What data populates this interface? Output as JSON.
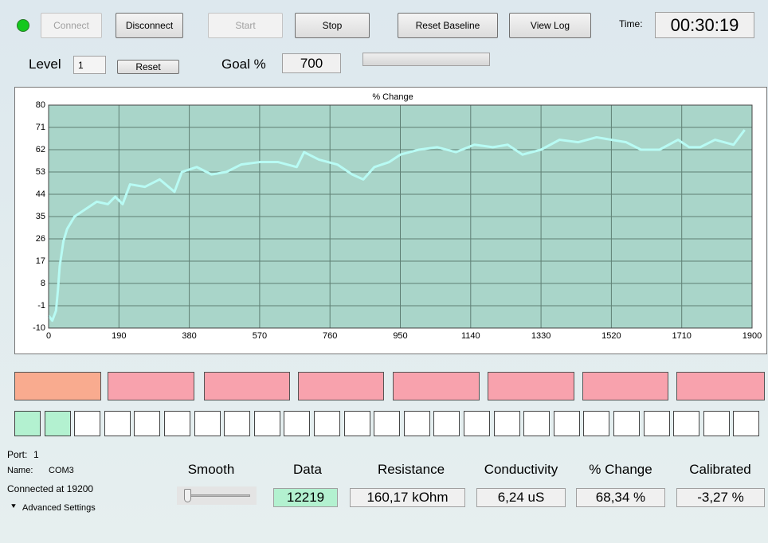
{
  "buttons": {
    "connect": "Connect",
    "disconnect": "Disconnect",
    "start": "Start",
    "stop": "Stop",
    "reset_baseline": "Reset Baseline",
    "view_log": "View Log"
  },
  "time": {
    "label": "Time:",
    "value": "00:30:19"
  },
  "level": {
    "label": "Level",
    "value": "1",
    "reset": "Reset"
  },
  "goal": {
    "label": "Goal %",
    "value": "700"
  },
  "chart_data": {
    "type": "line",
    "title": "% Change",
    "color": "#b8fbf4",
    "grid": true,
    "x": [
      0,
      10,
      20,
      25,
      30,
      40,
      50,
      70,
      100,
      130,
      160,
      180,
      200,
      220,
      260,
      300,
      340,
      360,
      400,
      440,
      480,
      520,
      570,
      620,
      670,
      690,
      730,
      780,
      820,
      850,
      880,
      920,
      950,
      1000,
      1050,
      1100,
      1150,
      1200,
      1240,
      1280,
      1330,
      1380,
      1430,
      1480,
      1520,
      1560,
      1600,
      1650,
      1700,
      1730,
      1760,
      1800,
      1850,
      1870,
      1880
    ],
    "values": [
      -5,
      -7,
      -3,
      5,
      15,
      25,
      30,
      35,
      38,
      41,
      40,
      43,
      40,
      48,
      47,
      50,
      45,
      53,
      55,
      52,
      53,
      56,
      57,
      57,
      55,
      61,
      58,
      56,
      52,
      50,
      55,
      57,
      60,
      62,
      63,
      61,
      64,
      63,
      64,
      60,
      62,
      66,
      65,
      67,
      66,
      65,
      62,
      62,
      66,
      63,
      63,
      66,
      64,
      68,
      70
    ],
    "xlim": [
      0,
      1900
    ],
    "xticks": [
      0,
      190,
      380,
      570,
      760,
      950,
      1140,
      1330,
      1520,
      1710,
      1900
    ],
    "ylim": [
      -10,
      80
    ],
    "yticks": [
      -10,
      -1,
      8,
      17,
      26,
      35,
      44,
      53,
      62,
      71,
      80
    ]
  },
  "connection": {
    "port_label": "Port:",
    "port": "1",
    "name_label": "Name:",
    "name": "COM3",
    "status": "Connected at 19200",
    "advanced": "Advanced Settings"
  },
  "readouts": {
    "smooth": "Smooth",
    "fields": [
      {
        "label": "Data",
        "value": "12219"
      },
      {
        "label": "Resistance",
        "value": "160,17 kOhm"
      },
      {
        "label": "Conductivity",
        "value": "6,24 uS"
      },
      {
        "label": "% Change",
        "value": "68,34 %"
      },
      {
        "label": "Calibrated",
        "value": "-3,27 %"
      }
    ]
  }
}
